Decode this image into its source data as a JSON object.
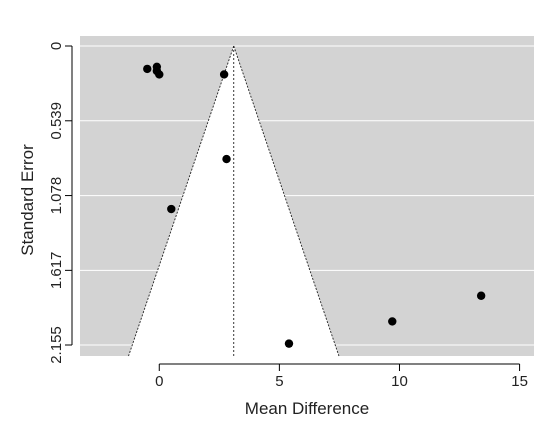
{
  "chart_data": {
    "type": "scatter",
    "subtype": "funnel",
    "title": "",
    "xlabel": "Mean Difference",
    "ylabel": "Standard Error",
    "xlim": [
      -3.3,
      15.6
    ],
    "ylim": [
      0,
      2.155
    ],
    "y_axis_reversed": true,
    "x_ticks": [
      0,
      5,
      10,
      15
    ],
    "y_ticks": [
      "0",
      "0.539",
      "1.078",
      "1.617",
      "2.155"
    ],
    "y_tick_values": [
      0,
      0.539,
      1.078,
      1.617,
      2.155
    ],
    "pooled_estimate": 3.1,
    "funnel_multiplier": 1.96,
    "grid": true,
    "colors": {
      "panel": "#d3d3d3",
      "funnel_fill": "#ffffff",
      "gridline": "#ffffff",
      "points": "#000000",
      "funnel_edge": "#222222"
    },
    "points": [
      {
        "x": -0.5,
        "y": 0.165
      },
      {
        "x": -0.1,
        "y": 0.15
      },
      {
        "x": -0.1,
        "y": 0.18
      },
      {
        "x": 0.0,
        "y": 0.205
      },
      {
        "x": 2.7,
        "y": 0.205
      },
      {
        "x": 2.8,
        "y": 0.815
      },
      {
        "x": 0.5,
        "y": 1.175
      },
      {
        "x": 5.4,
        "y": 2.145
      },
      {
        "x": 9.7,
        "y": 1.985
      },
      {
        "x": 13.4,
        "y": 1.8
      }
    ]
  }
}
